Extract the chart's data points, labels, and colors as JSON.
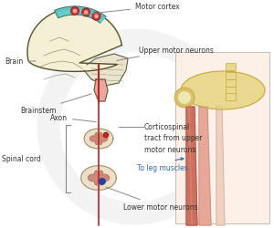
{
  "bg_color": "#ffffff",
  "brain_color": "#f5f0d5",
  "brain_outline": "#555533",
  "motor_cortex_color": "#55c8cc",
  "brainstem_color": "#e8a8a0",
  "cerebellum_color": "#e8e0c8",
  "spinal_cord_outer": "#ede0c8",
  "spinal_cord_inner": "#cc8878",
  "nerve_color": "#bb2222",
  "nerve_lw": 1.2,
  "annotation_color": "#333333",
  "annotation_fs": 5.5,
  "blue_color": "#3366bb",
  "muscle_color": "#cc7060",
  "muscle_color2": "#e8a898",
  "bone_color": "#e8d890",
  "bone_outline": "#c8a830",
  "watermark_color": "#dddddd",
  "labels": {
    "motor_cortex": "Motor cortex",
    "brain": "Brain",
    "upper_motor": "Upper motor neurons",
    "brainstem": "Brainstem",
    "axon": "Axon",
    "corticospinal": "Corticospinal\ntract from upper\nmotor neurons",
    "spinal_cord": "Spinal cord",
    "to_leg": "To leg muscles",
    "lower_motor": "Lower motor neurons"
  },
  "figsize": [
    3.0,
    2.51
  ],
  "dpi": 100
}
